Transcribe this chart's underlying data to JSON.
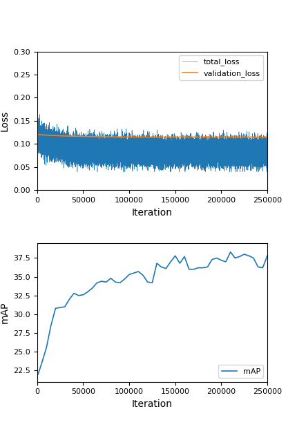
{
  "loss_xlim": [
    0,
    250000
  ],
  "loss_ylim": [
    0.0,
    0.3
  ],
  "loss_yticks": [
    0.0,
    0.05,
    0.1,
    0.15,
    0.2,
    0.25,
    0.3
  ],
  "loss_xticks": [
    0,
    50000,
    100000,
    150000,
    200000,
    250000
  ],
  "loss_xlabel": "Iteration",
  "loss_ylabel": "Loss",
  "total_loss_color": "#1f77b4",
  "validation_loss_color": "#ff7f0e",
  "total_loss_label": "total_loss",
  "validation_loss_label": "validation_loss",
  "map_xlim": [
    0,
    250000
  ],
  "map_ylim": [
    21.0,
    39.5
  ],
  "map_yticks": [
    22.5,
    25.0,
    27.5,
    30.0,
    32.5,
    35.0,
    37.5
  ],
  "map_xticks": [
    0,
    50000,
    100000,
    150000,
    200000,
    250000
  ],
  "map_xlabel": "Iteration",
  "map_ylabel": "mAP",
  "map_color": "#1f77b4",
  "map_label": "mAP",
  "map_iters": [
    1000,
    5000,
    10000,
    15000,
    20000,
    25000,
    30000,
    35000,
    40000,
    45000,
    50000,
    55000,
    60000,
    65000,
    70000,
    75000,
    80000,
    85000,
    90000,
    95000,
    100000,
    105000,
    110000,
    115000,
    120000,
    125000,
    130000,
    135000,
    140000,
    145000,
    150000,
    155000,
    160000,
    165000,
    170000,
    175000,
    180000,
    185000,
    190000,
    195000,
    200000,
    205000,
    210000,
    215000,
    220000,
    225000,
    230000,
    235000,
    240000,
    245000,
    250000
  ],
  "map_values": [
    22.0,
    23.5,
    25.5,
    28.5,
    30.8,
    30.9,
    31.0,
    32.0,
    32.8,
    32.5,
    32.6,
    33.0,
    33.5,
    34.2,
    34.4,
    34.3,
    34.8,
    34.3,
    34.2,
    34.7,
    35.3,
    35.5,
    35.7,
    35.2,
    34.3,
    34.2,
    36.8,
    36.3,
    36.1,
    37.0,
    37.8,
    36.8,
    37.7,
    36.0,
    36.0,
    36.2,
    36.2,
    36.3,
    37.3,
    37.5,
    37.2,
    37.0,
    38.3,
    37.5,
    37.7,
    38.0,
    37.8,
    37.5,
    36.3,
    36.2,
    37.8
  ],
  "figsize": [
    4.3,
    6.21
  ],
  "dpi": 100
}
